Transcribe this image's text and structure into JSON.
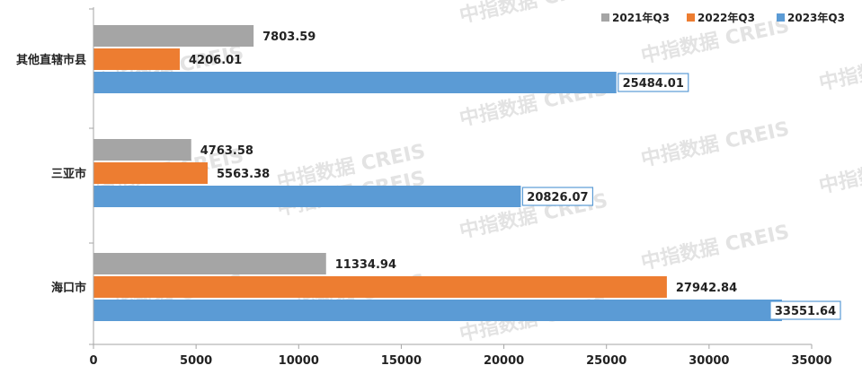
{
  "chart_data": {
    "type": "bar",
    "orientation": "horizontal",
    "categories": [
      "其他直辖市县",
      "三亚市",
      "海口市"
    ],
    "series": [
      {
        "name": "2021年Q3",
        "color": "#a5a5a5",
        "values": [
          7803.59,
          4763.58,
          11334.94
        ],
        "labels": [
          "7803.59",
          "4763.58",
          "11334.94"
        ]
      },
      {
        "name": "2022年Q3",
        "color": "#ed7d31",
        "values": [
          4206.01,
          5563.38,
          27942.84
        ],
        "labels": [
          "4206.01",
          "5563.38",
          "27942.84"
        ]
      },
      {
        "name": "2023年Q3",
        "color": "#5b9bd5",
        "values": [
          25484.01,
          20826.07,
          33551.64
        ],
        "labels": [
          "25484.01",
          "20826.07",
          "33551.64"
        ],
        "boxed_labels": true
      }
    ],
    "xlim": [
      0,
      35000
    ],
    "xticks": [
      0,
      5000,
      10000,
      15000,
      20000,
      25000,
      30000,
      35000
    ],
    "xtick_labels": [
      "0",
      "5000",
      "10000",
      "15000",
      "20000",
      "25000",
      "30000",
      "35000"
    ],
    "legend_position": "top-right",
    "grid": false
  },
  "watermark": "中指数据 CREIS"
}
